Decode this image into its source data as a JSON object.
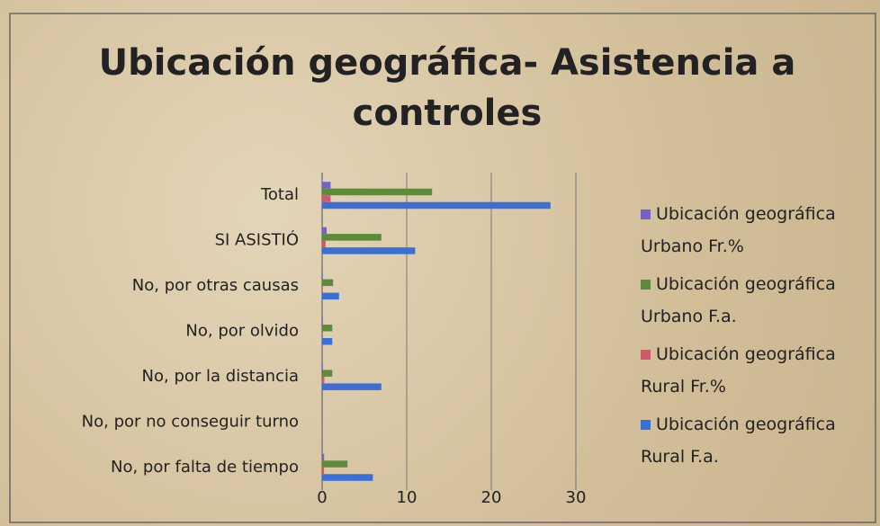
{
  "chart_data": {
    "type": "bar",
    "orientation": "horizontal",
    "title": "Ubicación geográfica- Asistencia a controles",
    "categories": [
      "Total",
      "SI ASISTIÓ",
      "No, por otras causas",
      "No, por olvido",
      "No, por la distancia",
      "No, por no conseguir turno",
      "No, por falta de tiempo"
    ],
    "series": [
      {
        "name": "Ubicación geográfica Urbano Fr.%",
        "color": "#7462c4",
        "values": [
          1,
          0.54,
          0.08,
          0.08,
          0.08,
          0,
          0.23
        ]
      },
      {
        "name": "Ubicación geográfica Urbano F.a.",
        "color": "#5f8a3c",
        "values": [
          13,
          7,
          1.3,
          1.2,
          1.2,
          0,
          3
        ]
      },
      {
        "name": "Ubicación geográfica Rural Fr.%",
        "color": "#cf5a6c",
        "values": [
          1,
          0.41,
          0.07,
          0.04,
          0.26,
          0,
          0.22
        ]
      },
      {
        "name": "Ubicación geográfica Rural F.a.",
        "color": "#3b6fd6",
        "values": [
          27,
          11,
          2,
          1.2,
          7,
          0,
          6
        ]
      }
    ],
    "xlim": [
      0,
      30
    ],
    "xticks": [
      0,
      10,
      20,
      30
    ],
    "grid": true,
    "legend": "right"
  }
}
